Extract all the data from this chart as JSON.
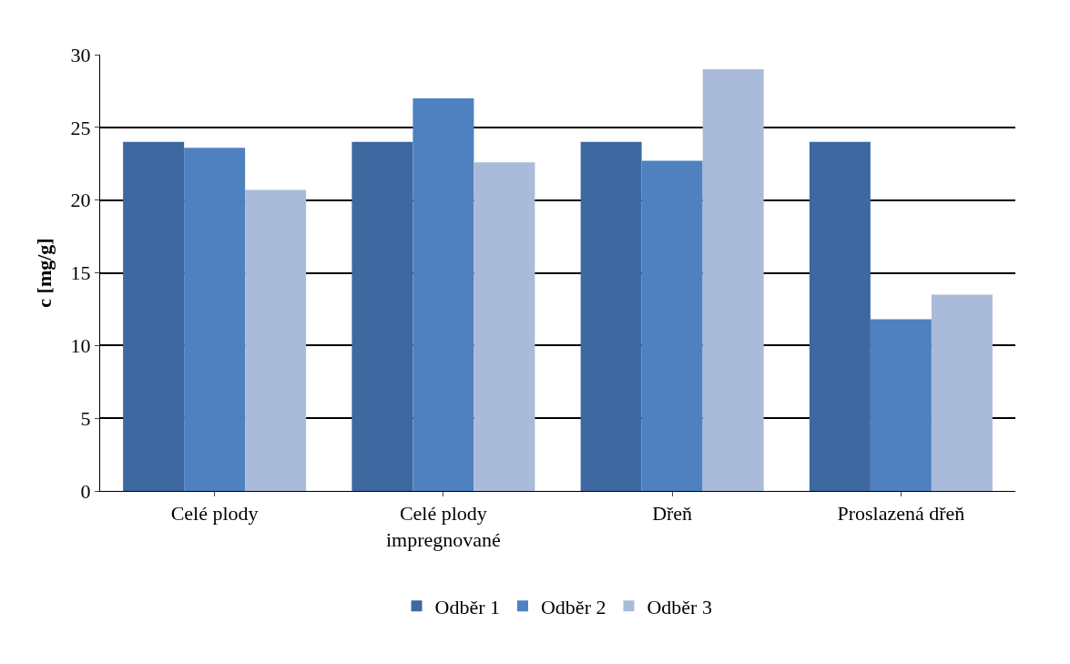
{
  "chart_data": {
    "type": "bar",
    "ylabel": "c [mg/g]",
    "categories": [
      "Celé plody",
      "Celé plody impregnované",
      "Dřeň",
      "Proslazená dřeň"
    ],
    "series": [
      {
        "name": "Odběr 1",
        "color": "#3e68a0",
        "values": [
          24,
          24,
          24,
          24
        ]
      },
      {
        "name": "Odběr 2",
        "color": "#4f81c0",
        "values": [
          23.6,
          27.0,
          22.7,
          11.8
        ]
      },
      {
        "name": "Odběr 3",
        "color": "#aabbd9",
        "values": [
          20.7,
          22.6,
          29.0,
          13.5
        ]
      }
    ],
    "ylim": [
      0,
      30
    ],
    "yticks": [
      0,
      5,
      10,
      15,
      20,
      25,
      30
    ],
    "grid": "y",
    "legend": "bottom"
  }
}
